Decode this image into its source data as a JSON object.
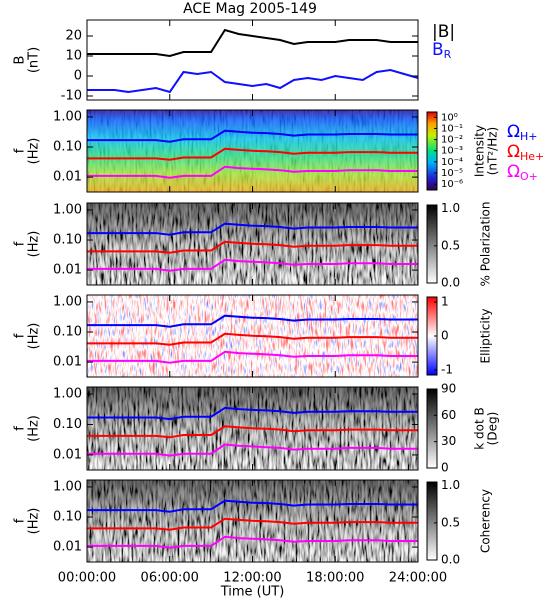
{
  "chart_data": [
    {
      "type": "line",
      "title": "ACE Mag 2005-149",
      "ylabel": "B",
      "yunit": "(nT)",
      "x": [
        0,
        1,
        2,
        3,
        4,
        5,
        6,
        7,
        8,
        9,
        10,
        11,
        12,
        13,
        14,
        15,
        16,
        17,
        18,
        19,
        20,
        21,
        22,
        23,
        24
      ],
      "xlim": [
        0,
        24
      ],
      "ylim": [
        -12,
        28
      ],
      "yticks": [
        -10,
        0,
        10,
        20
      ],
      "series": [
        {
          "name": "|B|",
          "color": "#000000",
          "values": [
            11,
            11,
            11,
            11,
            11,
            11,
            10,
            12,
            12,
            12,
            23,
            21,
            20,
            19,
            18,
            16,
            17,
            17,
            17,
            18,
            18,
            18,
            17,
            17,
            17
          ]
        },
        {
          "name": "B",
          "subscript": "R",
          "color": "#1010ff",
          "values": [
            -7,
            -7,
            -7,
            -8,
            -7,
            -6,
            -8,
            2,
            1,
            2,
            -3,
            -4,
            -5,
            -4,
            -6,
            -2,
            -1,
            -2,
            0,
            -1,
            -2,
            2,
            3,
            1,
            -1
          ]
        }
      ]
    },
    {
      "type": "spectrogram",
      "ylabel": "f",
      "yunit": "(Hz)",
      "ylog": true,
      "ylim": [
        0.0032,
        1.7
      ],
      "yticks": [
        {
          "value": 1,
          "label": "1.00"
        },
        {
          "value": 0.1,
          "label": "0.10"
        },
        {
          "value": 0.01,
          "label": "0.01"
        }
      ],
      "colormap": "jet",
      "colorbar_label": "Intensity",
      "colorbar_unit": "(nT²/Hz)",
      "clog": true,
      "clim": [
        3e-07,
        3
      ],
      "cticks": [
        {
          "value": 1,
          "label": "10⁰"
        },
        {
          "value": 0.1,
          "label": "10⁻¹"
        },
        {
          "value": 0.01,
          "label": "10⁻²"
        },
        {
          "value": 0.001,
          "label": "10⁻³"
        },
        {
          "value": 0.0001,
          "label": "10⁻⁴"
        },
        {
          "value": 1e-05,
          "label": "10⁻⁵"
        },
        {
          "value": 1e-06,
          "label": "10⁻⁶"
        }
      ],
      "x": [
        0,
        1,
        2,
        3,
        4,
        5,
        6,
        7,
        8,
        9,
        10,
        11,
        12,
        13,
        14,
        15,
        16,
        17,
        18,
        19,
        20,
        21,
        22,
        23,
        24
      ],
      "xlim": [
        0,
        24
      ],
      "series": [
        {
          "name": "Ω",
          "subscript": "H+",
          "color": "#0000ff",
          "values": [
            0.17,
            0.17,
            0.17,
            0.17,
            0.17,
            0.17,
            0.15,
            0.18,
            0.18,
            0.18,
            0.35,
            0.32,
            0.3,
            0.29,
            0.27,
            0.24,
            0.26,
            0.26,
            0.26,
            0.27,
            0.27,
            0.27,
            0.26,
            0.26,
            0.26
          ]
        },
        {
          "name": "Ω",
          "subscript": "He+",
          "color": "#ff0000",
          "values": [
            0.042,
            0.042,
            0.042,
            0.042,
            0.042,
            0.042,
            0.038,
            0.045,
            0.045,
            0.045,
            0.087,
            0.08,
            0.075,
            0.072,
            0.068,
            0.06,
            0.065,
            0.065,
            0.065,
            0.068,
            0.068,
            0.068,
            0.065,
            0.065,
            0.065
          ]
        },
        {
          "name": "Ω",
          "subscript": "O+",
          "color": "#ff00ff",
          "values": [
            0.011,
            0.011,
            0.011,
            0.011,
            0.011,
            0.011,
            0.0095,
            0.011,
            0.011,
            0.011,
            0.022,
            0.02,
            0.019,
            0.018,
            0.017,
            0.015,
            0.016,
            0.016,
            0.016,
            0.017,
            0.017,
            0.017,
            0.016,
            0.016,
            0.016
          ]
        }
      ]
    },
    {
      "type": "spectrogram",
      "ylabel": "f",
      "yunit": "(Hz)",
      "ylog": true,
      "ylim": [
        0.0032,
        1.7
      ],
      "yticks": [
        {
          "value": 1,
          "label": "1.00"
        },
        {
          "value": 0.1,
          "label": "0.10"
        },
        {
          "value": 0.01,
          "label": "0.01"
        }
      ],
      "colormap": "gray",
      "colorbar_label": "% Polarization",
      "clim": [
        0,
        1.05
      ],
      "cticks": [
        {
          "value": 0,
          "label": "0.0"
        },
        {
          "value": 0.5,
          "label": "0.5"
        },
        {
          "value": 1,
          "label": "1.0"
        }
      ]
    },
    {
      "type": "spectrogram",
      "ylabel": "f",
      "yunit": "(Hz)",
      "ylog": true,
      "ylim": [
        0.0032,
        1.7
      ],
      "yticks": [
        {
          "value": 1,
          "label": "1.00"
        },
        {
          "value": 0.1,
          "label": "0.10"
        },
        {
          "value": 0.01,
          "label": "0.01"
        }
      ],
      "colormap": "redblue",
      "colorbar_label": "Ellipticity",
      "clim": [
        -1.15,
        1.15
      ],
      "cticks": [
        -1,
        0,
        1
      ]
    },
    {
      "type": "spectrogram",
      "ylabel": "f",
      "yunit": "(Hz)",
      "ylog": true,
      "ylim": [
        0.0032,
        1.7
      ],
      "yticks": [
        {
          "value": 1,
          "label": "1.00"
        },
        {
          "value": 0.1,
          "label": "0.10"
        },
        {
          "value": 0.01,
          "label": "0.01"
        }
      ],
      "colormap": "gray",
      "colorbar_label": "k dot B",
      "colorbar_unit": "(Deg)",
      "clim": [
        0,
        90
      ],
      "cticks": [
        0,
        30,
        60,
        90
      ]
    },
    {
      "type": "spectrogram",
      "ylabel": "f",
      "yunit": "(Hz)",
      "ylog": true,
      "ylim": [
        0.0032,
        1.7
      ],
      "yticks": [
        {
          "value": 1,
          "label": "1.00"
        },
        {
          "value": 0.1,
          "label": "0.10"
        },
        {
          "value": 0.01,
          "label": "0.01"
        }
      ],
      "colormap": "gray",
      "colorbar_label": "Coherency",
      "clim": [
        0,
        1.05
      ],
      "cticks": [
        {
          "value": 0,
          "label": "0.0"
        },
        {
          "value": 0.5,
          "label": "0.5"
        },
        {
          "value": 1,
          "label": "1.0"
        }
      ],
      "xlim": [
        0,
        24
      ],
      "xlabel": "Time (UT)",
      "xticks": [
        {
          "value": 0,
          "label": "00:00:00"
        },
        {
          "value": 6,
          "label": "06:00:00"
        },
        {
          "value": 12,
          "label": "12:00:00"
        },
        {
          "value": 18,
          "label": "18:00:00"
        },
        {
          "value": 24,
          "label": "24:00:00"
        }
      ]
    }
  ]
}
